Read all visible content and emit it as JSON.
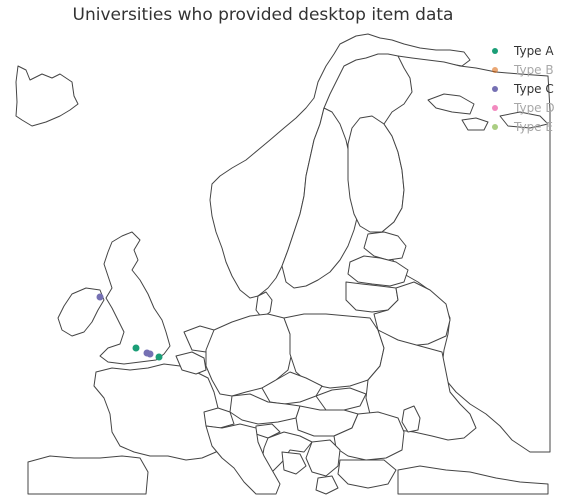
{
  "title": "Universities who provided desktop item data",
  "legend": {
    "items": [
      {
        "label": "Type A",
        "color": "#1b9e77",
        "visible": true
      },
      {
        "label": "Type B",
        "color": "#d95f02",
        "visible": false
      },
      {
        "label": "Type C",
        "color": "#7570b3",
        "visible": true
      },
      {
        "label": "Type D",
        "color": "#e7298a",
        "visible": false
      },
      {
        "label": "Type E",
        "color": "#66a61e",
        "visible": false
      }
    ]
  },
  "map": {
    "region": "Europe",
    "land_color": "#ffffff",
    "border_color": "#444444",
    "background_color": "#ffffff"
  },
  "chart_data": {
    "type": "scatter",
    "title": "Universities who provided desktop item data",
    "series": [
      {
        "name": "Type A",
        "points": [
          {
            "lon": -1.25,
            "lat": 51.75
          },
          {
            "lon": 1.1,
            "lat": 51.28
          }
        ]
      },
      {
        "name": "Type C",
        "points": [
          {
            "lon": -5.93,
            "lat": 54.6
          },
          {
            "lon": -0.13,
            "lat": 51.52
          },
          {
            "lon": 0.1,
            "lat": 51.5
          }
        ]
      }
    ]
  }
}
